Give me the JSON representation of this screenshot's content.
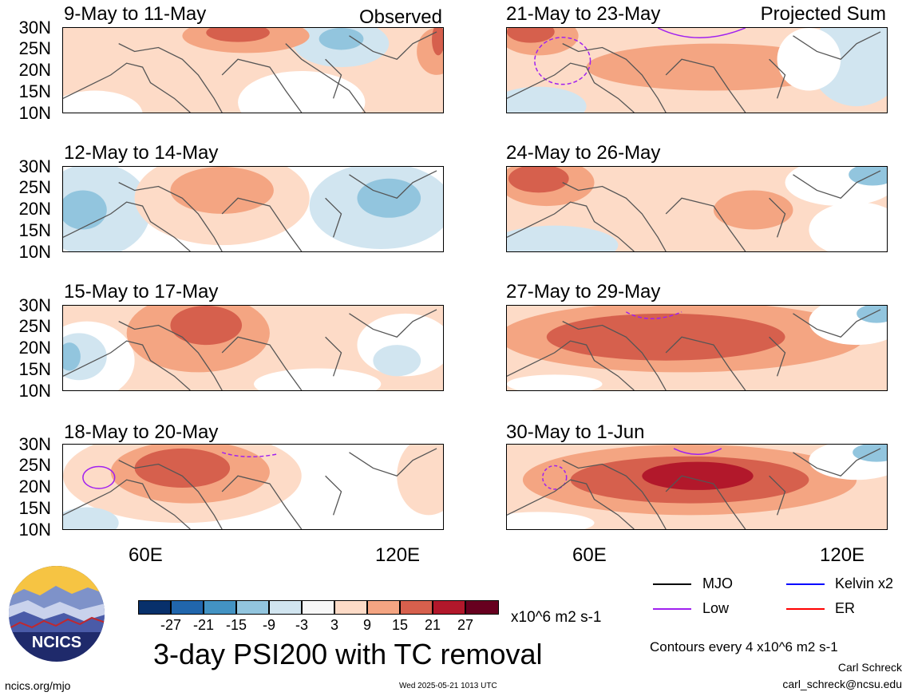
{
  "panels": [
    {
      "title": "9-May to 11-May",
      "tag": "Observed"
    },
    {
      "title": "12-May to 14-May",
      "tag": ""
    },
    {
      "title": "15-May to 17-May",
      "tag": ""
    },
    {
      "title": "18-May to 20-May",
      "tag": ""
    },
    {
      "title": "21-May to 23-May",
      "tag": "Projected Sum"
    },
    {
      "title": "24-May to 26-May",
      "tag": ""
    },
    {
      "title": "27-May to 29-May",
      "tag": ""
    },
    {
      "title": "30-May to 1-Jun",
      "tag": ""
    }
  ],
  "lat_labels": [
    "30N",
    "25N",
    "20N",
    "15N",
    "10N"
  ],
  "lon_labels": [
    "60E",
    "120E"
  ],
  "colorbar": {
    "colors": [
      "#08306b",
      "#2166ac",
      "#4393c3",
      "#92c5de",
      "#d1e5f0",
      "#f7f7f7",
      "#fddbc7",
      "#f4a582",
      "#d6604d",
      "#b2182b",
      "#67001f"
    ],
    "labels": [
      "-27",
      "-21",
      "-15",
      "-9",
      "-3",
      "3",
      "9",
      "15",
      "21",
      "27"
    ],
    "units": "x10^6 m2 s-1"
  },
  "title": "3-day PSI200 with TC removal",
  "legend": [
    {
      "label": "MJO",
      "color": "#000000"
    },
    {
      "label": "Low",
      "color": "#a020f0"
    },
    {
      "label": "Kelvin x2",
      "color": "#0000ff"
    },
    {
      "label": "ER",
      "color": "#ff0000"
    }
  ],
  "contours_note": "Contours every 4 x10^6 m2 s-1",
  "author": "Carl Schreck",
  "email": "carl_schreck@ncsu.edu",
  "site": "ncics.org/mjo",
  "timestamp": "Wed 2025-05-21 1013 UTC",
  "logo_text": "NCICS"
}
